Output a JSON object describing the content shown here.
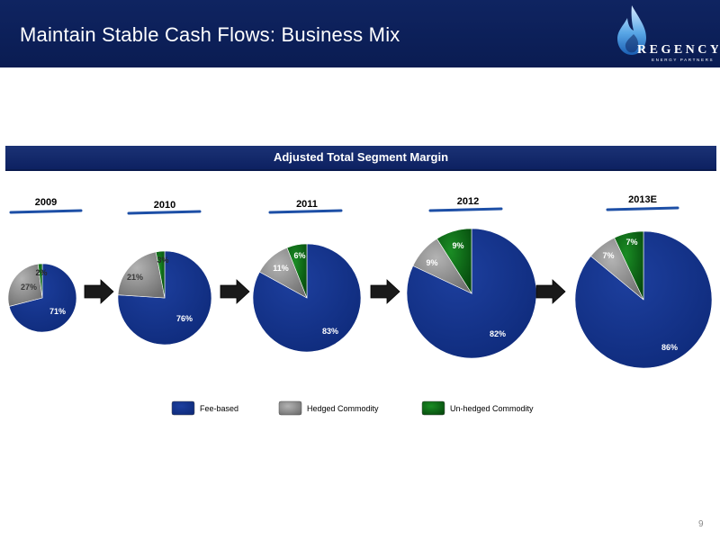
{
  "header": {
    "title": "Maintain Stable Cash Flows: Business Mix"
  },
  "logo": {
    "name": "REGENCY",
    "tagline": "ENERGY PARTNERS"
  },
  "banner": {
    "title": "Adjusted Total Segment Margin"
  },
  "colors": {
    "fee": "#0e2a7a",
    "hedged": "#8a8a8a",
    "unhedged": "#0a6a14",
    "header_bg": "#0f2461",
    "year_underline": "#1d4fa6"
  },
  "chart_data": [
    {
      "type": "pie",
      "title": "2009",
      "categories": [
        "Fee-based",
        "Hedged Commodity",
        "Un-hedged Commodity"
      ],
      "values": [
        71,
        27,
        2
      ],
      "labels": [
        "71%",
        "27%",
        "2%"
      ]
    },
    {
      "type": "pie",
      "title": "2010",
      "categories": [
        "Fee-based",
        "Hedged Commodity",
        "Un-hedged Commodity"
      ],
      "values": [
        76,
        21,
        3
      ],
      "labels": [
        "76%",
        "21%",
        "3%"
      ]
    },
    {
      "type": "pie",
      "title": "2011",
      "categories": [
        "Fee-based",
        "Hedged Commodity",
        "Un-hedged Commodity"
      ],
      "values": [
        83,
        11,
        6
      ],
      "labels": [
        "83%",
        "11%",
        "6%"
      ]
    },
    {
      "type": "pie",
      "title": "2012",
      "categories": [
        "Fee-based",
        "Hedged Commodity",
        "Un-hedged Commodity"
      ],
      "values": [
        82,
        9,
        9
      ],
      "labels": [
        "82%",
        "9%",
        "9%"
      ]
    },
    {
      "type": "pie",
      "title": "2013E",
      "categories": [
        "Fee-based",
        "Hedged Commodity",
        "Un-hedged Commodity"
      ],
      "values": [
        86,
        7,
        7
      ],
      "labels": [
        "86%",
        "7%",
        "7%"
      ]
    }
  ],
  "legend": [
    {
      "label": "Fee-based",
      "key": "fee"
    },
    {
      "label": "Hedged Commodity",
      "key": "hedged"
    },
    {
      "label": "Un-hedged Commodity",
      "key": "unhedged"
    }
  ],
  "page_number": "9"
}
